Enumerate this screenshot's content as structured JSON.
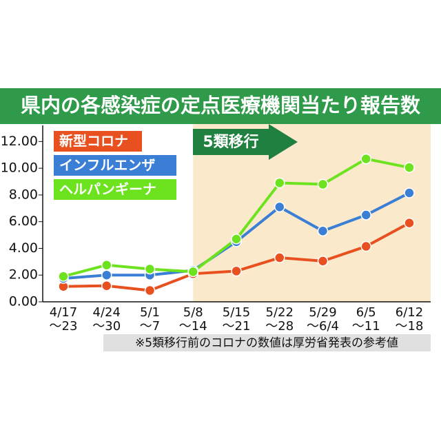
{
  "chart_data": {
    "type": "line",
    "title": "県内の各感染症の定点医療機関当たり報告数",
    "categories": [
      [
        "4/17",
        "〜23"
      ],
      [
        "4/24",
        "〜30"
      ],
      [
        "5/1",
        "〜7"
      ],
      [
        "5/8",
        "〜14"
      ],
      [
        "5/15",
        "〜21"
      ],
      [
        "5/22",
        "〜28"
      ],
      [
        "5/29",
        "〜6/4"
      ],
      [
        "6/5",
        "〜11"
      ],
      [
        "6/12",
        "〜18"
      ]
    ],
    "series": [
      {
        "name": "新型コロナ",
        "color": "#e8501f",
        "values": [
          1.15,
          1.2,
          0.85,
          2.1,
          2.3,
          3.3,
          3.05,
          4.15,
          5.9
        ]
      },
      {
        "name": "インフルエンザ",
        "color": "#3a7fd5",
        "values": [
          1.75,
          2.0,
          2.0,
          2.35,
          4.5,
          7.1,
          5.3,
          6.5,
          8.15
        ]
      },
      {
        "name": "ヘルパンギーナ",
        "color": "#6de31f",
        "values": [
          1.9,
          2.75,
          2.45,
          2.25,
          4.7,
          8.9,
          8.8,
          10.7,
          10.05
        ]
      }
    ],
    "ylim": [
      0,
      13
    ],
    "yticks": [
      {
        "value": 0,
        "label": "0.00"
      },
      {
        "value": 2,
        "label": "2.00"
      },
      {
        "value": 4,
        "label": "4.00"
      },
      {
        "value": 6,
        "label": "6.00"
      },
      {
        "value": 8,
        "label": "8.00"
      },
      {
        "value": 10,
        "label": "10.00"
      },
      {
        "value": 12,
        "label": "12.00"
      }
    ],
    "annotation": "5類移行",
    "footnote": "※5類移行前のコロナの数値は厚労省発表の参考値"
  }
}
